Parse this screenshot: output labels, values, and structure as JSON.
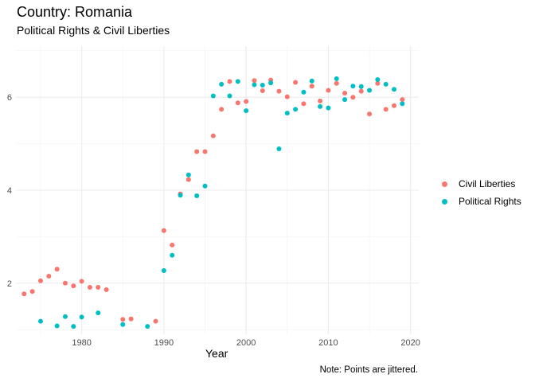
{
  "chart_data": {
    "type": "scatter",
    "title": "Country: Romania",
    "subtitle": "Political Rights & Civil Liberties",
    "xlabel": "Year",
    "ylabel": "",
    "caption": "Note: Points are jittered.",
    "xlim": [
      1972,
      2021
    ],
    "ylim": [
      0.9,
      7.1
    ],
    "x_ticks": [
      1980,
      1990,
      2000,
      2010,
      2020
    ],
    "y_ticks": [
      2,
      4,
      6
    ],
    "grid": true,
    "legend_position": "right",
    "series": [
      {
        "name": "Civil Liberties",
        "color": "#F8766D",
        "points": [
          [
            1973,
            1.77
          ],
          [
            1974,
            1.82
          ],
          [
            1975,
            2.05
          ],
          [
            1976,
            2.15
          ],
          [
            1977,
            2.3
          ],
          [
            1978,
            2.0
          ],
          [
            1979,
            1.94
          ],
          [
            1980,
            2.04
          ],
          [
            1981,
            1.91
          ],
          [
            1982,
            1.91
          ],
          [
            1983,
            1.86
          ],
          [
            1985,
            1.22
          ],
          [
            1986,
            1.23
          ],
          [
            1989,
            1.18
          ],
          [
            1990,
            3.13
          ],
          [
            1991,
            2.82
          ],
          [
            1992,
            3.92
          ],
          [
            1993,
            4.23
          ],
          [
            1994,
            4.83
          ],
          [
            1995,
            4.83
          ],
          [
            1996,
            5.17
          ],
          [
            1997,
            5.74
          ],
          [
            1998,
            6.34
          ],
          [
            1999,
            5.88
          ],
          [
            2000,
            5.91
          ],
          [
            2001,
            6.36
          ],
          [
            2002,
            6.14
          ],
          [
            2003,
            6.37
          ],
          [
            2004,
            6.13
          ],
          [
            2005,
            6.01
          ],
          [
            2006,
            6.32
          ],
          [
            2007,
            5.86
          ],
          [
            2008,
            6.24
          ],
          [
            2009,
            5.92
          ],
          [
            2010,
            6.15
          ],
          [
            2011,
            6.3
          ],
          [
            2012,
            6.09
          ],
          [
            2013,
            6.0
          ],
          [
            2014,
            6.13
          ],
          [
            2015,
            5.64
          ],
          [
            2016,
            6.3
          ],
          [
            2017,
            5.74
          ],
          [
            2018,
            5.82
          ],
          [
            2019,
            5.95
          ]
        ]
      },
      {
        "name": "Political Rights",
        "color": "#00BFC4",
        "points": [
          [
            1975,
            1.18
          ],
          [
            1977,
            1.08
          ],
          [
            1978,
            1.28
          ],
          [
            1979,
            1.07
          ],
          [
            1980,
            1.27
          ],
          [
            1982,
            1.36
          ],
          [
            1985,
            1.11
          ],
          [
            1988,
            1.07
          ],
          [
            1990,
            2.27
          ],
          [
            1991,
            2.6
          ],
          [
            1992,
            3.89
          ],
          [
            1993,
            4.33
          ],
          [
            1994,
            3.88
          ],
          [
            1995,
            4.09
          ],
          [
            1996,
            6.03
          ],
          [
            1997,
            6.28
          ],
          [
            1998,
            6.03
          ],
          [
            1999,
            6.34
          ],
          [
            2000,
            5.71
          ],
          [
            2001,
            6.27
          ],
          [
            2002,
            6.26
          ],
          [
            2003,
            6.31
          ],
          [
            2004,
            4.89
          ],
          [
            2005,
            5.66
          ],
          [
            2006,
            5.74
          ],
          [
            2007,
            6.11
          ],
          [
            2008,
            6.35
          ],
          [
            2009,
            5.8
          ],
          [
            2010,
            5.77
          ],
          [
            2011,
            6.4
          ],
          [
            2012,
            5.95
          ],
          [
            2013,
            6.24
          ],
          [
            2014,
            6.23
          ],
          [
            2015,
            6.15
          ],
          [
            2016,
            6.38
          ],
          [
            2017,
            6.28
          ],
          [
            2018,
            6.17
          ],
          [
            2019,
            5.86
          ]
        ]
      }
    ]
  }
}
